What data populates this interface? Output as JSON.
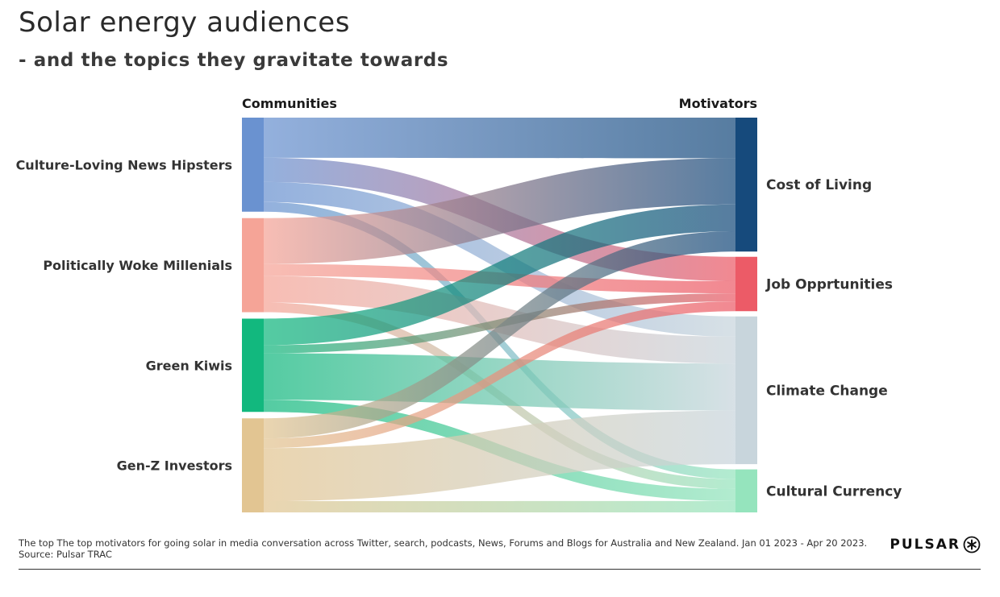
{
  "header": {
    "title": "Solar energy audiences",
    "subtitle": "- and the topics they gravitate towards"
  },
  "chart_data": {
    "type": "sankey",
    "source_header": "Communities",
    "target_header": "Motivators",
    "sources": [
      {
        "name": "Culture-Loving News Hipsters",
        "color": "#6a92d0"
      },
      {
        "name": "Politically Woke Millenials",
        "color": "#f5a497"
      },
      {
        "name": "Green Kiwis",
        "color": "#12b87e"
      },
      {
        "name": "Gen-Z Investors",
        "color": "#e2c592"
      }
    ],
    "targets": [
      {
        "name": "Cost of Living",
        "color": "#164a7c"
      },
      {
        "name": "Job Opprtunities",
        "color": "#ec5b67"
      },
      {
        "name": "Climate Change",
        "color": "#c8d5dc"
      },
      {
        "name": "Cultural Currency",
        "color": "#95e4bd"
      }
    ],
    "links": [
      {
        "source": 0,
        "target": 0,
        "value": 50
      },
      {
        "source": 0,
        "target": 1,
        "value": 30
      },
      {
        "source": 0,
        "target": 2,
        "value": 25
      },
      {
        "source": 0,
        "target": 3,
        "value": 12
      },
      {
        "source": 1,
        "target": 0,
        "value": 57
      },
      {
        "source": 1,
        "target": 1,
        "value": 15
      },
      {
        "source": 1,
        "target": 2,
        "value": 33
      },
      {
        "source": 1,
        "target": 3,
        "value": 12
      },
      {
        "source": 2,
        "target": 0,
        "value": 33
      },
      {
        "source": 2,
        "target": 1,
        "value": 10
      },
      {
        "source": 2,
        "target": 2,
        "value": 58
      },
      {
        "source": 2,
        "target": 3,
        "value": 15
      },
      {
        "source": 3,
        "target": 0,
        "value": 25
      },
      {
        "source": 3,
        "target": 1,
        "value": 12
      },
      {
        "source": 3,
        "target": 2,
        "value": 66
      },
      {
        "source": 3,
        "target": 3,
        "value": 14
      }
    ]
  },
  "footer": {
    "note": "The top The top motivators for going solar in media conversation across Twitter, search, podcasts, News, Forums and Blogs for Australia and New Zealand. Jan 01 2023 - Apr 20 2023.",
    "source": "Source: Pulsar TRAC",
    "brand": "PULSAR",
    "brand_icon": "asterisk-circle-icon"
  }
}
